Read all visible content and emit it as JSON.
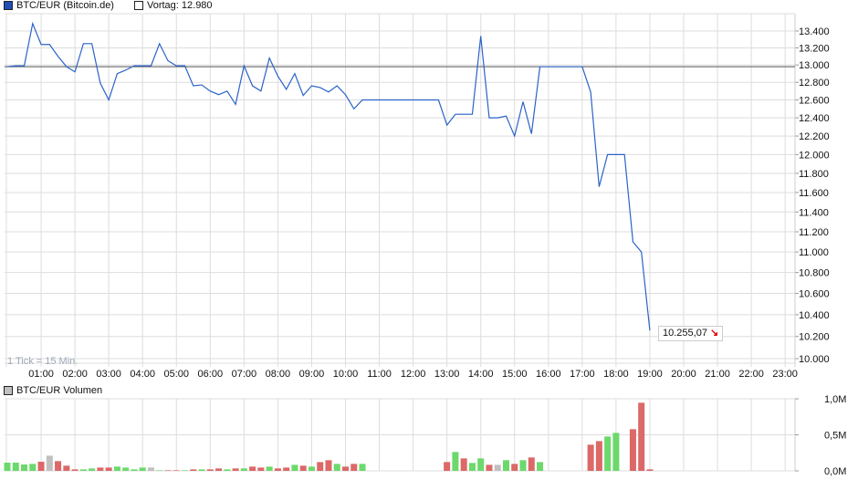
{
  "legend": {
    "series_label": "BTC/EUR (Bitcoin.de)",
    "series_color": "#1f4fb4",
    "prev_label": "Vortag: 12.980",
    "volume_label": "BTC/EUR Volumen",
    "volume_color": "#c0c0c0"
  },
  "tick_note": "1 Tick = 15 Min.",
  "last_price": "10.255,07",
  "last_direction": "down-arrow-icon",
  "colors": {
    "line": "#2a63c8",
    "prev_line": "#666666",
    "grid": "#dddddd",
    "up": "#6bd96b",
    "down": "#dc6868",
    "flat": "#c0c0c0",
    "arrow": "#e00000",
    "tick_note": "#a0a8b8"
  },
  "chart_data": [
    {
      "type": "line",
      "title": "BTC/EUR (Bitcoin.de)",
      "yscale": "log",
      "ylim": [
        10000,
        13400
      ],
      "yticks": [
        10000,
        10200,
        10400,
        10600,
        10800,
        11000,
        11200,
        11400,
        11600,
        11800,
        12000,
        12200,
        12400,
        12600,
        12800,
        13000,
        13200,
        13400
      ],
      "ytick_labels": [
        "10.000",
        "10.200",
        "10.400",
        "10.600",
        "10.800",
        "11.000",
        "11.200",
        "11.400",
        "11.600",
        "11.800",
        "12.000",
        "12.200",
        "12.400",
        "12.600",
        "12.800",
        "13.000",
        "13.200",
        "13.400"
      ],
      "xticks": [
        "01:00",
        "02:00",
        "03:00",
        "04:00",
        "05:00",
        "06:00",
        "07:00",
        "08:00",
        "09:00",
        "10:00",
        "11:00",
        "12:00",
        "13:00",
        "14:00",
        "15:00",
        "16:00",
        "17:00",
        "18:00",
        "19:00",
        "20:00",
        "21:00",
        "22:00",
        "23:00"
      ],
      "grid": true,
      "reference_line": {
        "label": "Vortag",
        "value": 12980
      },
      "points": [
        [
          "00:00",
          12980
        ],
        [
          "00:15",
          12990
        ],
        [
          "00:30",
          12990
        ],
        [
          "00:45",
          13490
        ],
        [
          "01:00",
          13240
        ],
        [
          "01:15",
          13240
        ],
        [
          "01:30",
          13100
        ],
        [
          "01:45",
          12980
        ],
        [
          "02:00",
          12920
        ],
        [
          "02:15",
          13250
        ],
        [
          "02:30",
          13250
        ],
        [
          "02:45",
          12790
        ],
        [
          "03:00",
          12600
        ],
        [
          "03:15",
          12900
        ],
        [
          "03:30",
          12940
        ],
        [
          "03:45",
          12990
        ],
        [
          "04:00",
          12990
        ],
        [
          "04:15",
          12990
        ],
        [
          "04:30",
          13250
        ],
        [
          "04:45",
          13050
        ],
        [
          "05:00",
          12990
        ],
        [
          "05:15",
          12990
        ],
        [
          "05:30",
          12760
        ],
        [
          "05:45",
          12770
        ],
        [
          "06:00",
          12700
        ],
        [
          "06:15",
          12660
        ],
        [
          "06:30",
          12700
        ],
        [
          "06:45",
          12550
        ],
        [
          "07:00",
          12990
        ],
        [
          "07:15",
          12760
        ],
        [
          "07:30",
          12700
        ],
        [
          "07:45",
          13080
        ],
        [
          "08:00",
          12870
        ],
        [
          "08:15",
          12720
        ],
        [
          "08:30",
          12900
        ],
        [
          "08:45",
          12650
        ],
        [
          "09:00",
          12760
        ],
        [
          "09:15",
          12740
        ],
        [
          "09:30",
          12690
        ],
        [
          "09:45",
          12760
        ],
        [
          "10:00",
          12660
        ],
        [
          "10:15",
          12500
        ],
        [
          "10:30",
          12600
        ],
        [
          "12:45",
          12600
        ],
        [
          "13:00",
          12320
        ],
        [
          "13:15",
          12440
        ],
        [
          "13:30",
          12440
        ],
        [
          "13:45",
          12440
        ],
        [
          "14:00",
          13340
        ],
        [
          "14:15",
          12400
        ],
        [
          "14:30",
          12400
        ],
        [
          "14:45",
          12420
        ],
        [
          "15:00",
          12200
        ],
        [
          "15:15",
          12580
        ],
        [
          "15:30",
          12225
        ],
        [
          "15:45",
          12980
        ],
        [
          "17:00",
          12980
        ],
        [
          "17:15",
          12690
        ],
        [
          "17:30",
          11660
        ],
        [
          "17:45",
          12000
        ],
        [
          "18:00",
          12000
        ],
        [
          "18:15",
          12000
        ],
        [
          "18:30",
          11100
        ],
        [
          "18:45",
          11000
        ],
        [
          "19:00",
          10255.07
        ]
      ]
    },
    {
      "type": "bar",
      "title": "BTC/EUR Volumen",
      "ylim": [
        0,
        1.0
      ],
      "yticks": [
        0,
        0.5,
        1.0
      ],
      "ytick_labels": [
        "0,0M",
        "0,5M",
        "1,0M"
      ],
      "unit": "M",
      "bars": [
        [
          "00:00",
          0.114,
          "up"
        ],
        [
          "00:15",
          0.114,
          "up"
        ],
        [
          "00:30",
          0.089,
          "up"
        ],
        [
          "00:45",
          0.097,
          "up"
        ],
        [
          "01:00",
          0.127,
          "down"
        ],
        [
          "01:15",
          0.211,
          "flat"
        ],
        [
          "01:30",
          0.135,
          "down"
        ],
        [
          "01:45",
          0.072,
          "down"
        ],
        [
          "02:00",
          0.021,
          "down"
        ],
        [
          "02:15",
          0.021,
          "up"
        ],
        [
          "02:30",
          0.034,
          "up"
        ],
        [
          "02:45",
          0.046,
          "down"
        ],
        [
          "03:00",
          0.046,
          "down"
        ],
        [
          "03:15",
          0.059,
          "up"
        ],
        [
          "03:30",
          0.046,
          "up"
        ],
        [
          "03:45",
          0.021,
          "up"
        ],
        [
          "04:00",
          0.046,
          "up"
        ],
        [
          "04:15",
          0.046,
          "flat"
        ],
        [
          "04:30",
          0.008,
          "up"
        ],
        [
          "04:45",
          0.008,
          "down"
        ],
        [
          "05:00",
          0.008,
          "down"
        ],
        [
          "05:15",
          0.008,
          "up"
        ],
        [
          "05:30",
          0.021,
          "down"
        ],
        [
          "05:45",
          0.021,
          "up"
        ],
        [
          "06:00",
          0.021,
          "down"
        ],
        [
          "06:15",
          0.034,
          "down"
        ],
        [
          "06:30",
          0.021,
          "up"
        ],
        [
          "06:45",
          0.034,
          "down"
        ],
        [
          "07:00",
          0.034,
          "up"
        ],
        [
          "07:15",
          0.059,
          "down"
        ],
        [
          "07:30",
          0.046,
          "down"
        ],
        [
          "07:45",
          0.059,
          "up"
        ],
        [
          "08:00",
          0.034,
          "down"
        ],
        [
          "08:15",
          0.046,
          "down"
        ],
        [
          "08:30",
          0.084,
          "up"
        ],
        [
          "08:45",
          0.072,
          "down"
        ],
        [
          "09:00",
          0.059,
          "up"
        ],
        [
          "09:15",
          0.122,
          "down"
        ],
        [
          "09:30",
          0.148,
          "down"
        ],
        [
          "09:45",
          0.097,
          "up"
        ],
        [
          "10:00",
          0.059,
          "down"
        ],
        [
          "10:15",
          0.097,
          "down"
        ],
        [
          "10:30",
          0.097,
          "up"
        ],
        [
          "13:00",
          0.122,
          "down"
        ],
        [
          "13:15",
          0.262,
          "up"
        ],
        [
          "13:30",
          0.173,
          "down"
        ],
        [
          "13:45",
          0.11,
          "up"
        ],
        [
          "14:00",
          0.173,
          "up"
        ],
        [
          "14:15",
          0.084,
          "down"
        ],
        [
          "14:30",
          0.084,
          "flat"
        ],
        [
          "14:45",
          0.148,
          "up"
        ],
        [
          "15:00",
          0.097,
          "down"
        ],
        [
          "15:15",
          0.148,
          "up"
        ],
        [
          "15:30",
          0.186,
          "down"
        ],
        [
          "15:45",
          0.122,
          "up"
        ],
        [
          "17:15",
          0.363,
          "down"
        ],
        [
          "17:30",
          0.413,
          "down"
        ],
        [
          "17:45",
          0.477,
          "up"
        ],
        [
          "18:00",
          0.527,
          "up"
        ],
        [
          "18:30",
          0.578,
          "down"
        ],
        [
          "18:45",
          0.945,
          "down"
        ],
        [
          "19:00",
          0.021,
          "down"
        ]
      ]
    }
  ]
}
